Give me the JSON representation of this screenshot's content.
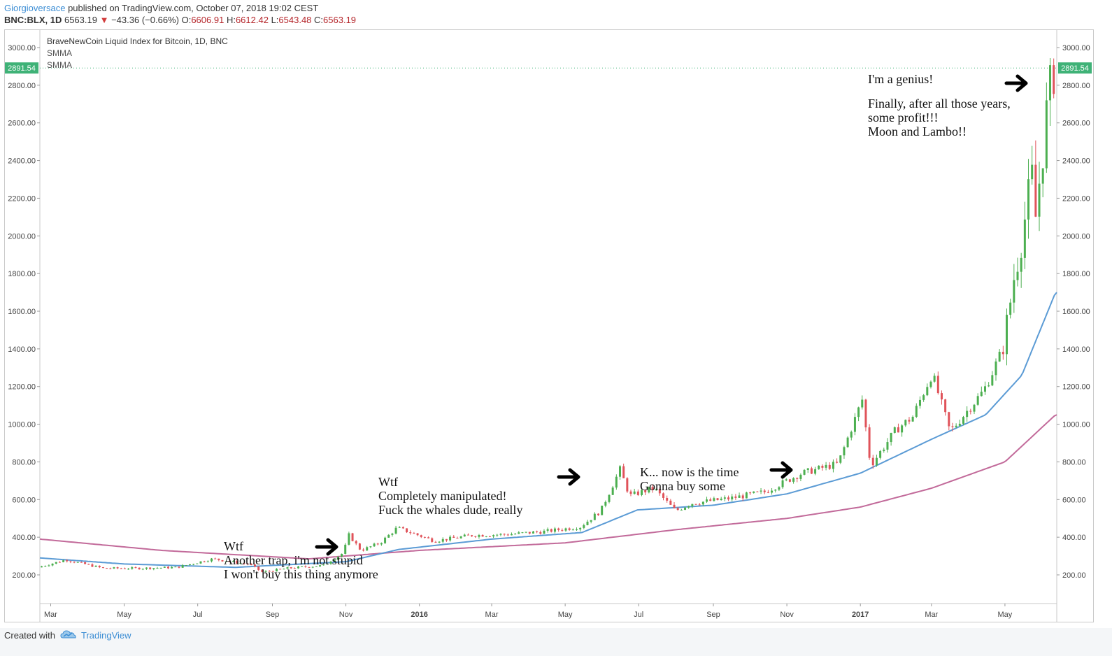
{
  "header": {
    "author": "Giorgioversace",
    "published_text": "published on TradingView.com, October 07, 2018 19:02 CEST",
    "symbol": "BNC:BLX, 1D",
    "last_price": "6563.19",
    "change": "−43.36 (−0.66%)",
    "open_label": "O:",
    "open": "6606.91",
    "high_label": "H:",
    "high": "6612.42",
    "low_label": "L:",
    "low": "6543.48",
    "close_label": "C:",
    "close": "6563.19"
  },
  "legend": {
    "title": "BraveNewCoin Liquid Index for Bitcoin, 1D, BNC",
    "indicator1": "SMMA",
    "indicator2": "SMMA"
  },
  "price_tag": "2891.54",
  "annotations": [
    {
      "lines": [
        "Wtf",
        "Another trap, i'm not stupid",
        "I won't buy this thing anymore"
      ]
    },
    {
      "lines": [
        "Wtf",
        "Completely manipulated!",
        "Fuck the whales dude, really"
      ]
    },
    {
      "lines": [
        "K... now is the time",
        "Gonna buy some"
      ]
    },
    {
      "lines": [
        "I'm a genius!",
        "",
        "Finally, after all those years,",
        "some profit!!!",
        "Moon and Lambo!!"
      ]
    }
  ],
  "footer": {
    "created_with": "Created with",
    "brand": "TradingView"
  },
  "colors": {
    "up_candle": "#4caf50",
    "down_candle": "#e0535a",
    "smma_fast": "#5b9bd5",
    "smma_slow": "#c26a9a",
    "price_tag_bg": "#3fb277",
    "brand": "#3b8dd4"
  },
  "icons": [
    "right-arrow-icon",
    "tradingview-cloud-icon"
  ],
  "chart_data": {
    "type": "candlestick",
    "title": "BraveNewCoin Liquid Index for Bitcoin, 1D, BNC",
    "y_ticks": [
      200,
      400,
      600,
      800,
      1000,
      1200,
      1400,
      1600,
      1800,
      2000,
      2200,
      2400,
      2600,
      2800,
      3000
    ],
    "y_tick_labels": [
      "200.00",
      "400.00",
      "600.00",
      "800.00",
      "1000.00",
      "1200.00",
      "1400.00",
      "1600.00",
      "1800.00",
      "2000.00",
      "2200.00",
      "2400.00",
      "2600.00",
      "2800.00",
      "3000.00"
    ],
    "x_tick_labels": [
      "Mar",
      "May",
      "Jul",
      "Sep",
      "Nov",
      "2016",
      "Mar",
      "May",
      "Jul",
      "Sep",
      "Nov",
      "2017",
      "Mar",
      "May"
    ],
    "ylim": [
      0,
      3100
    ],
    "price_path": [
      [
        "2015-02-20",
        240
      ],
      [
        "2015-03-15",
        280
      ],
      [
        "2015-04-15",
        235
      ],
      [
        "2015-05-15",
        235
      ],
      [
        "2015-06-15",
        240
      ],
      [
        "2015-07-15",
        285
      ],
      [
        "2015-08-15",
        255
      ],
      [
        "2015-08-25",
        215
      ],
      [
        "2015-09-15",
        235
      ],
      [
        "2015-10-15",
        250
      ],
      [
        "2015-11-01",
        320
      ],
      [
        "2015-11-04",
        420
      ],
      [
        "2015-11-15",
        330
      ],
      [
        "2015-12-01",
        370
      ],
      [
        "2015-12-15",
        450
      ],
      [
        "2016-01-15",
        380
      ],
      [
        "2016-02-15",
        410
      ],
      [
        "2016-03-15",
        415
      ],
      [
        "2016-04-15",
        430
      ],
      [
        "2016-05-15",
        455
      ],
      [
        "2016-06-01",
        540
      ],
      [
        "2016-06-17",
        760
      ],
      [
        "2016-06-25",
        620
      ],
      [
        "2016-07-15",
        660
      ],
      [
        "2016-08-02",
        540
      ],
      [
        "2016-08-15",
        580
      ],
      [
        "2016-09-15",
        605
      ],
      [
        "2016-10-15",
        640
      ],
      [
        "2016-11-15",
        740
      ],
      [
        "2016-12-15",
        790
      ],
      [
        "2017-01-04",
        1130
      ],
      [
        "2017-01-11",
        780
      ],
      [
        "2017-02-01",
        970
      ],
      [
        "2017-02-15",
        1040
      ],
      [
        "2017-03-03",
        1270
      ],
      [
        "2017-03-18",
        960
      ],
      [
        "2017-04-01",
        1070
      ],
      [
        "2017-04-15",
        1180
      ],
      [
        "2017-05-01",
        1400
      ],
      [
        "2017-05-10",
        1780
      ],
      [
        "2017-05-25",
        2300
      ],
      [
        "2017-05-28",
        2100
      ],
      [
        "2017-06-05",
        2600
      ],
      [
        "2017-06-12",
        2890
      ]
    ],
    "smma_fast": [
      [
        "2015-02-20",
        290
      ],
      [
        "2015-05-01",
        258
      ],
      [
        "2015-08-01",
        240
      ],
      [
        "2015-11-01",
        270
      ],
      [
        "2015-12-15",
        335
      ],
      [
        "2016-03-01",
        390
      ],
      [
        "2016-05-15",
        425
      ],
      [
        "2016-06-30",
        545
      ],
      [
        "2016-09-01",
        570
      ],
      [
        "2016-11-01",
        630
      ],
      [
        "2017-01-01",
        740
      ],
      [
        "2017-03-01",
        920
      ],
      [
        "2017-04-15",
        1050
      ],
      [
        "2017-05-15",
        1260
      ],
      [
        "2017-06-12",
        1700
      ]
    ],
    "smma_slow": [
      [
        "2015-02-20",
        390
      ],
      [
        "2015-06-01",
        330
      ],
      [
        "2015-10-01",
        285
      ],
      [
        "2016-01-01",
        330
      ],
      [
        "2016-05-01",
        370
      ],
      [
        "2016-08-01",
        440
      ],
      [
        "2016-11-01",
        500
      ],
      [
        "2017-01-01",
        560
      ],
      [
        "2017-03-01",
        660
      ],
      [
        "2017-05-01",
        800
      ],
      [
        "2017-06-12",
        1050
      ]
    ]
  }
}
